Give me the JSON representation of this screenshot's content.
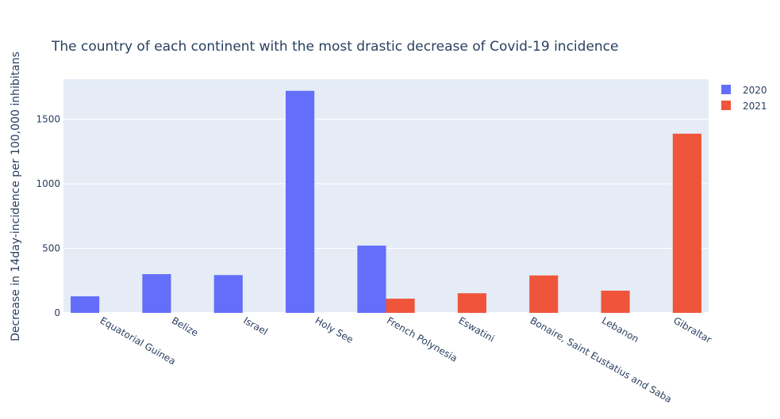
{
  "chart_data": {
    "type": "bar",
    "barmode": "group",
    "title": "The country of each continent with the most drastic decrease of Covid-19 incidence",
    "xlabel": "",
    "ylabel": "Decrease in 14day-incidence per 100,000 inhibitans",
    "categories": [
      "Equatorial Guinea",
      "Belize",
      "Israel",
      "Holy See",
      "French Polynesia",
      "Eswatini",
      "Bonaire, Saint Eustatius and Saba",
      "Lebanon",
      "Gibraltar"
    ],
    "series": [
      {
        "name": "2020",
        "color": "#636efa",
        "values": [
          128,
          300,
          293,
          1720,
          521,
          null,
          null,
          null,
          null
        ]
      },
      {
        "name": "2021",
        "color": "#ef553b",
        "values": [
          null,
          null,
          null,
          null,
          110,
          152,
          290,
          172,
          1388
        ]
      }
    ],
    "ylim": [
      0,
      1810
    ],
    "yticks": [
      0,
      500,
      1000,
      1500
    ],
    "grid": true,
    "legend_position": "top-right",
    "plot_background": "#e5ecf6"
  }
}
